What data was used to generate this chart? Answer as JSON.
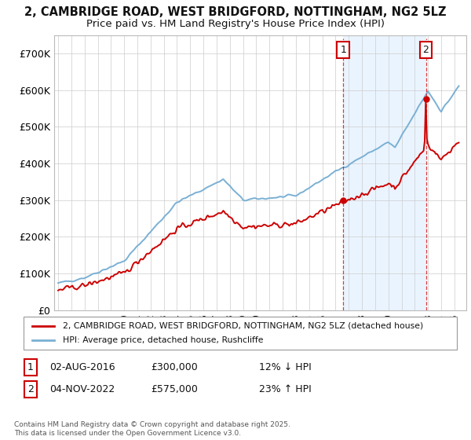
{
  "title": "2, CAMBRIDGE ROAD, WEST BRIDGFORD, NOTTINGHAM, NG2 5LZ",
  "subtitle": "Price paid vs. HM Land Registry's House Price Index (HPI)",
  "title_fontsize": 10.5,
  "subtitle_fontsize": 9.5,
  "background_color": "#ffffff",
  "plot_bg_color": "#ffffff",
  "grid_color": "#cccccc",
  "ylim": [
    0,
    750000
  ],
  "yticks": [
    0,
    100000,
    200000,
    300000,
    400000,
    500000,
    600000,
    700000
  ],
  "ytick_labels": [
    "£0",
    "£100K",
    "£200K",
    "£300K",
    "£400K",
    "£500K",
    "£600K",
    "£700K"
  ],
  "xlim_start": 1994.7,
  "xlim_end": 2025.9,
  "legend_label_red": "2, CAMBRIDGE ROAD, WEST BRIDGFORD, NOTTINGHAM, NG2 5LZ (detached house)",
  "legend_label_blue": "HPI: Average price, detached house, Rushcliffe",
  "hpi_color": "#7ab0d4",
  "price_color": "#cc0000",
  "shade_color": "#ddeeff",
  "vline_color": "#cc0000",
  "ann1_label": "1",
  "ann1_date": "02-AUG-2016",
  "ann1_price": "£300,000",
  "ann1_pct": "12% ↓ HPI",
  "ann1_year": 2016.58,
  "ann1_price_val": 300000,
  "ann2_label": "2",
  "ann2_date": "04-NOV-2022",
  "ann2_price": "£575,000",
  "ann2_pct": "23% ↑ HPI",
  "ann2_year": 2022.84,
  "ann2_price_val": 575000,
  "footer": "Contains HM Land Registry data © Crown copyright and database right 2025.\nThis data is licensed under the Open Government Licence v3.0."
}
